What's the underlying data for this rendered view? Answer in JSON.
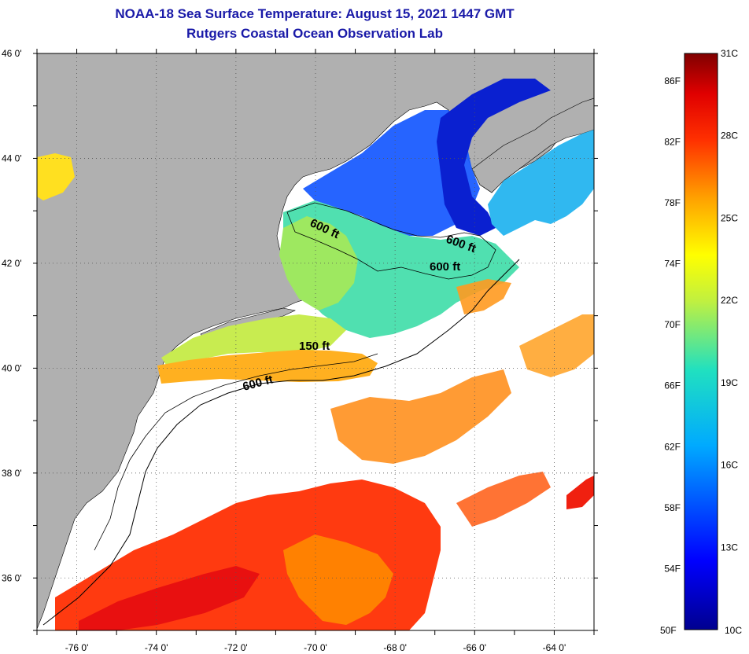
{
  "title_line1": "NOAA-18 Sea Surface Temperature:  August 15, 2021 1447 GMT",
  "title_line2": "Rutgers Coastal Ocean Observation Lab",
  "map": {
    "lon_range": [
      -77,
      -63
    ],
    "lat_range": [
      35,
      46
    ],
    "lat_ticks": [
      "46 0'",
      "44 0'",
      "42 0'",
      "40 0'",
      "38 0'",
      "36 0'"
    ],
    "lon_ticks": [
      "-76 0'",
      "-74 0'",
      "-72 0'",
      "-70 0'",
      "-68 0'",
      "-66 0'",
      "-64 0'"
    ],
    "grid": "dotted",
    "land_color": "#b0b0b0",
    "no_data_color": "#ffffff"
  },
  "contour_labels": [
    "600 ft",
    "600 ft",
    "600 ft",
    "150 ft",
    "600 ft"
  ],
  "colorbar": {
    "range_c": [
      10,
      31
    ],
    "top_label": "31C",
    "bottom_c_label": "10C",
    "bottom_f_label": "50F",
    "f_labels": [
      "86F",
      "82F",
      "78F",
      "74F",
      "70F",
      "66F",
      "62F",
      "58F",
      "54F"
    ],
    "c_labels": [
      "28C",
      "25C",
      "22C",
      "19C",
      "16C",
      "13C"
    ]
  }
}
